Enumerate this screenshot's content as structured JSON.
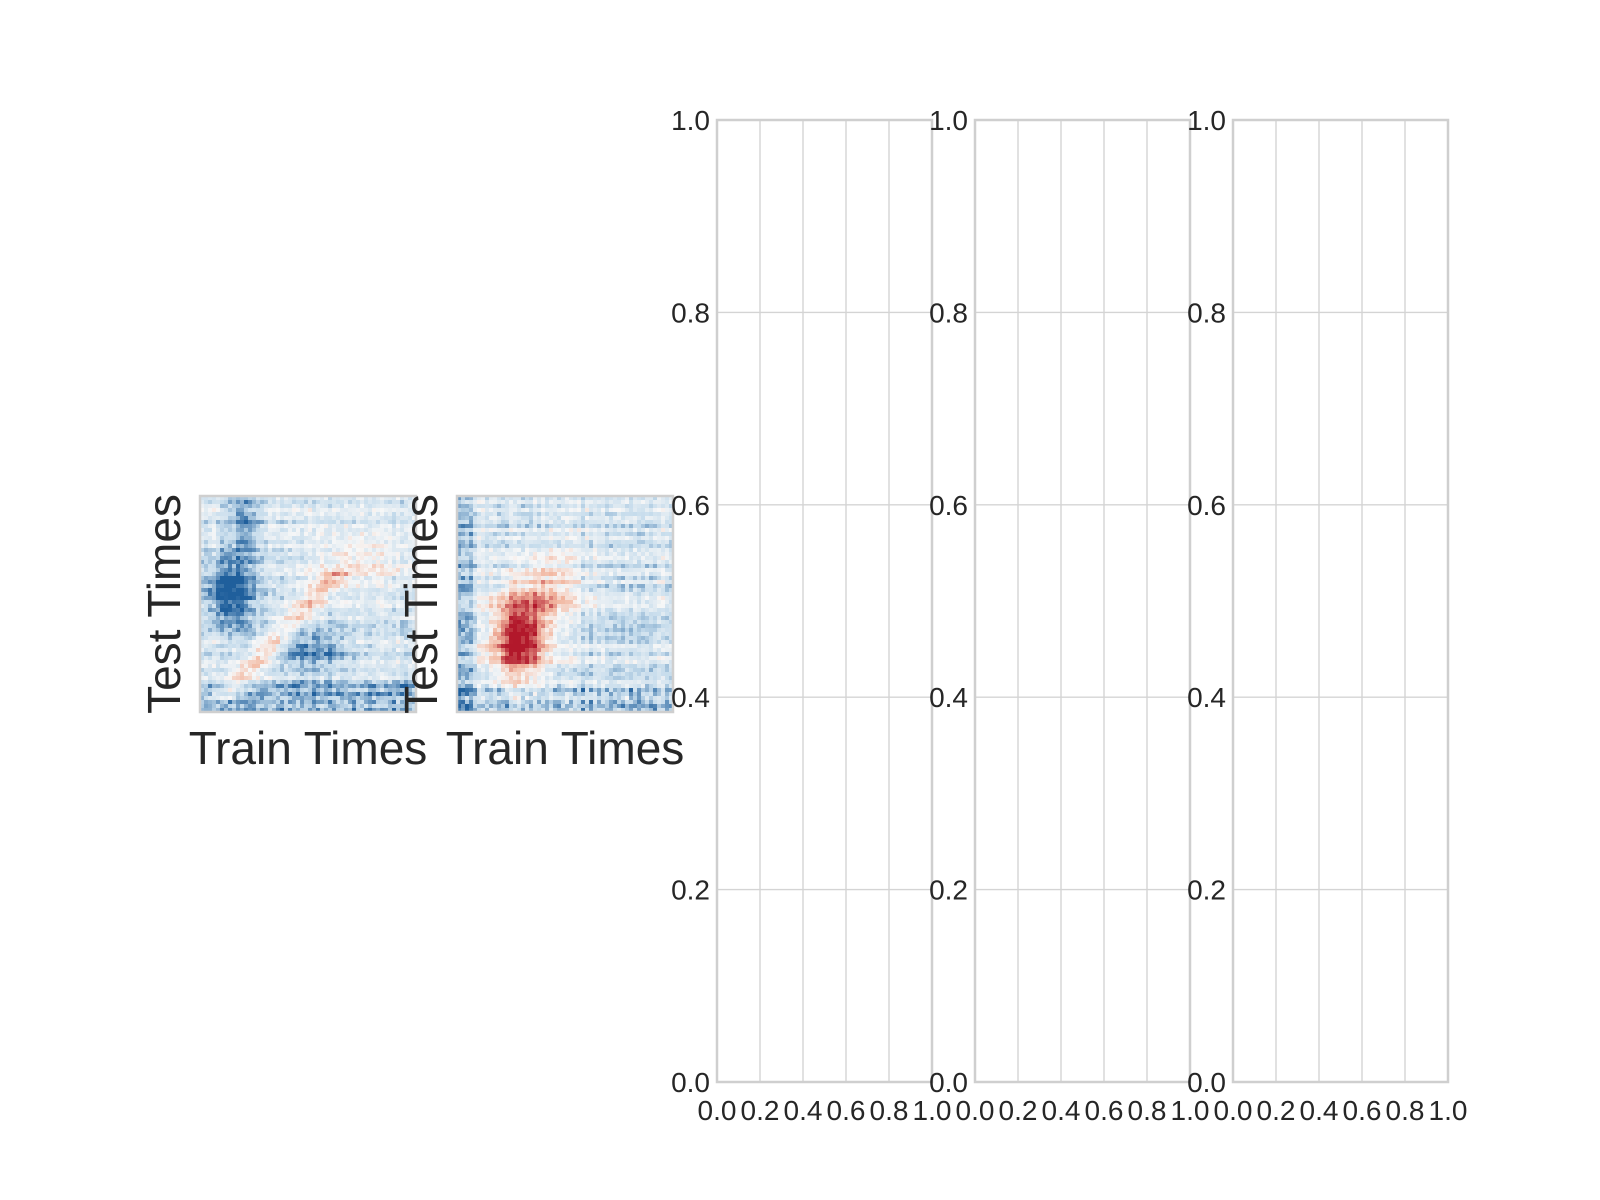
{
  "chart_data": [
    {
      "type": "heatmap",
      "xlabel": "Train Times",
      "ylabel": "Test Times",
      "colormap": "RdBu_r",
      "grid": false,
      "pattern": "mostly light blue noise; dark blue blob left of centre near the top half, diagonal band of light red, darker blue band in lower middle"
    },
    {
      "type": "heatmap",
      "xlabel": "Train Times",
      "ylabel": "Test Times",
      "colormap": "RdBu_r",
      "grid": false,
      "pattern": "light blue horizontal striping with a strong dark red blob in the lower left-centre"
    },
    {
      "type": "line",
      "series": [],
      "xlim": [
        0.0,
        1.0
      ],
      "ylim": [
        0.0,
        1.0
      ],
      "xticks": [
        "0.0",
        "0.2",
        "0.4",
        "0.6",
        "0.8",
        "1.0"
      ],
      "yticks": [
        "0.0",
        "0.2",
        "0.4",
        "0.6",
        "0.8",
        "1.0"
      ],
      "grid": true
    },
    {
      "type": "line",
      "series": [],
      "xlim": [
        0.0,
        1.0
      ],
      "ylim": [
        0.0,
        1.0
      ],
      "xticks": [
        "0.0",
        "0.2",
        "0.4",
        "0.6",
        "0.8",
        "1.0"
      ],
      "yticks": [
        "0.0",
        "0.2",
        "0.4",
        "0.6",
        "0.8",
        "1.0"
      ],
      "grid": true
    },
    {
      "type": "line",
      "series": [],
      "xlim": [
        0.0,
        1.0
      ],
      "ylim": [
        0.0,
        1.0
      ],
      "xticks": [
        "0.0",
        "0.2",
        "0.4",
        "0.6",
        "0.8",
        "1.0"
      ],
      "yticks": [
        "0.0",
        "0.2",
        "0.4",
        "0.6",
        "0.8",
        "1.0"
      ],
      "grid": true
    }
  ],
  "colors": {
    "grid": "#d4d4d4",
    "frame": "#cfcfcf",
    "text": "#262626",
    "cmap_dark_blue": "#1f5f9c",
    "cmap_light_blue": "#c6dcec",
    "cmap_white": "#f7f7f7",
    "cmap_light_red": "#f2b7a0",
    "cmap_dark_red": "#b2182b"
  }
}
